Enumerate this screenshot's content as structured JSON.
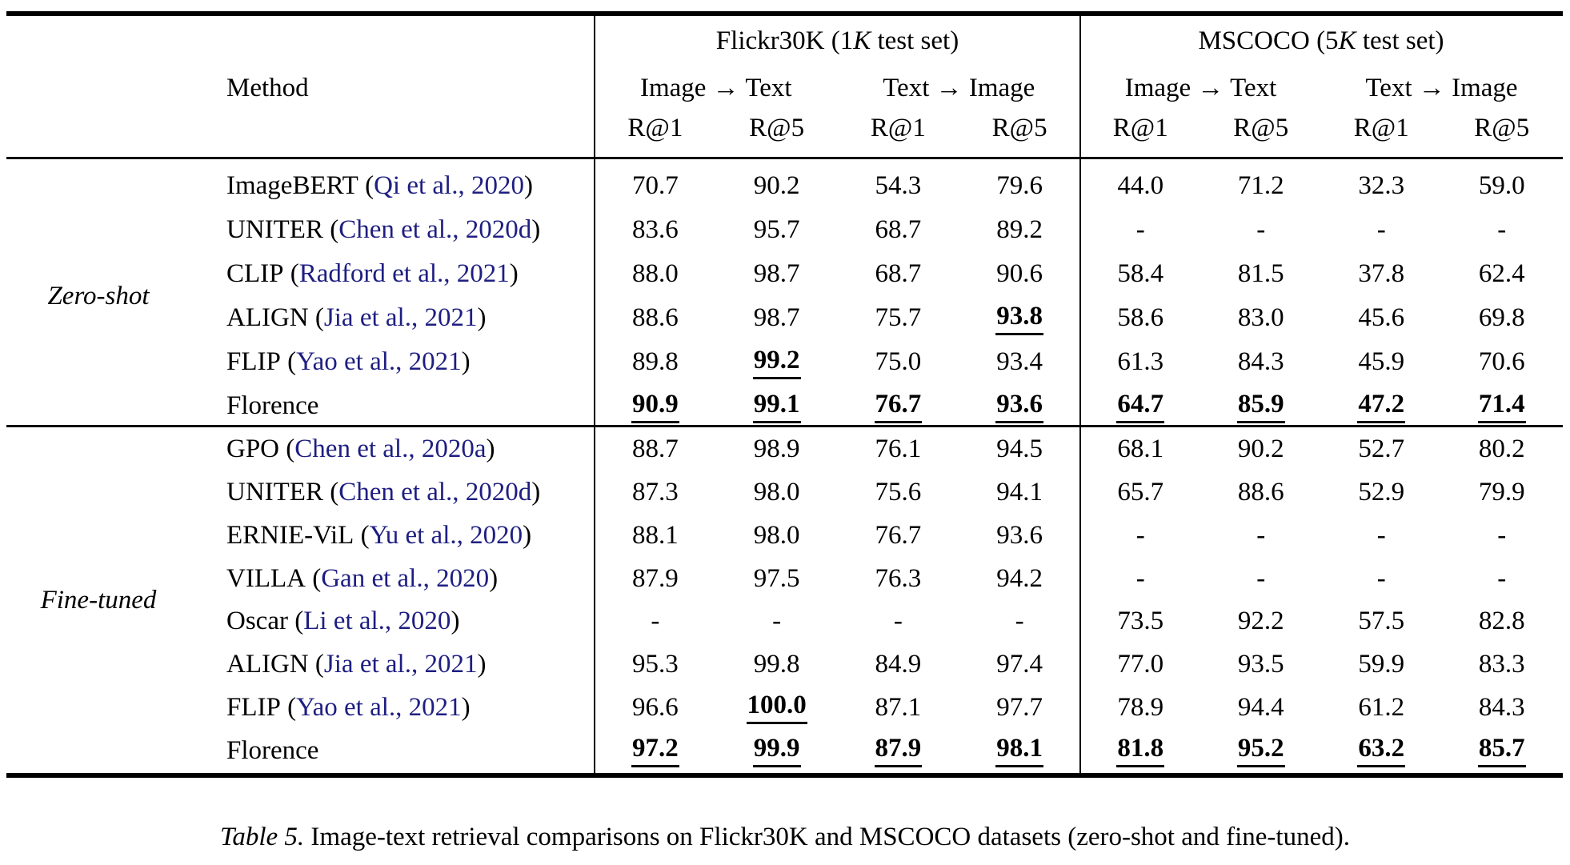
{
  "colors": {
    "citation_blue": "#1e1e82",
    "text": "#000000",
    "background": "#ffffff"
  },
  "header": {
    "method": "Method",
    "datasets": [
      {
        "pre": "Flickr30K (1",
        "k": "K",
        "post": " test set)",
        "directions": [
          "Image → Text",
          "Text → Image"
        ],
        "metrics": [
          "R@1",
          "R@5"
        ]
      },
      {
        "pre": "MSCOCO (5",
        "k": "K",
        "post": " test set)",
        "directions": [
          "Image → Text",
          "Text → Image"
        ],
        "metrics": [
          "R@1",
          "R@5"
        ]
      }
    ]
  },
  "sections": [
    {
      "label": "Zero-shot",
      "rows": [
        {
          "method": "ImageBERT",
          "cite": "Qi et al., 2020",
          "values": [
            "70.7",
            "90.2",
            "54.3",
            "79.6",
            "44.0",
            "71.2",
            "32.3",
            "59.0"
          ],
          "hl": []
        },
        {
          "method": "UNITER",
          "cite": "Chen et al., 2020d",
          "values": [
            "83.6",
            "95.7",
            "68.7",
            "89.2",
            "-",
            "-",
            "-",
            "-"
          ],
          "hl": []
        },
        {
          "method": "CLIP",
          "cite": "Radford et al., 2021",
          "values": [
            "88.0",
            "98.7",
            "68.7",
            "90.6",
            "58.4",
            "81.5",
            "37.8",
            "62.4"
          ],
          "hl": []
        },
        {
          "method": "ALIGN",
          "cite": "Jia et al., 2021",
          "values": [
            "88.6",
            "98.7",
            "75.7",
            "93.8",
            "58.6",
            "83.0",
            "45.6",
            "69.8"
          ],
          "hl": [
            3
          ]
        },
        {
          "method": "FLIP",
          "cite": "Yao et al., 2021",
          "values": [
            "89.8",
            "99.2",
            "75.0",
            "93.4",
            "61.3",
            "84.3",
            "45.9",
            "70.6"
          ],
          "hl": [
            1
          ]
        },
        {
          "method": "Florence",
          "cite": null,
          "values": [
            "90.9",
            "99.1",
            "76.7",
            "93.6",
            "64.7",
            "85.9",
            "47.2",
            "71.4"
          ],
          "hl": [
            0,
            1,
            2,
            3,
            4,
            5,
            6,
            7
          ]
        }
      ]
    },
    {
      "label": "Fine-tuned",
      "rows": [
        {
          "method": "GPO",
          "cite": "Chen et al., 2020a",
          "values": [
            "88.7",
            "98.9",
            "76.1",
            "94.5",
            "68.1",
            "90.2",
            "52.7",
            "80.2"
          ],
          "hl": []
        },
        {
          "method": "UNITER",
          "cite": "Chen et al., 2020d",
          "values": [
            "87.3",
            "98.0",
            "75.6",
            "94.1",
            "65.7",
            "88.6",
            "52.9",
            "79.9"
          ],
          "hl": []
        },
        {
          "method": "ERNIE-ViL",
          "cite": "Yu et al., 2020",
          "values": [
            "88.1",
            "98.0",
            "76.7",
            "93.6",
            "-",
            "-",
            "-",
            "-"
          ],
          "hl": []
        },
        {
          "method": "VILLA",
          "cite": "Gan et al., 2020",
          "values": [
            "87.9",
            "97.5",
            "76.3",
            "94.2",
            "-",
            "-",
            "-",
            "-"
          ],
          "hl": []
        },
        {
          "method": "Oscar",
          "cite": "Li et al., 2020",
          "values": [
            "-",
            "-",
            "-",
            "-",
            "73.5",
            "92.2",
            "57.5",
            "82.8"
          ],
          "hl": []
        },
        {
          "method": "ALIGN",
          "cite": "Jia et al., 2021",
          "values": [
            "95.3",
            "99.8",
            "84.9",
            "97.4",
            "77.0",
            "93.5",
            "59.9",
            "83.3"
          ],
          "hl": []
        },
        {
          "method": "FLIP",
          "cite": "Yao et al., 2021",
          "values": [
            "96.6",
            "100.0",
            "87.1",
            "97.7",
            "78.9",
            "94.4",
            "61.2",
            "84.3"
          ],
          "hl": [
            1
          ]
        },
        {
          "method": "Florence",
          "cite": null,
          "values": [
            "97.2",
            "99.9",
            "87.9",
            "98.1",
            "81.8",
            "95.2",
            "63.2",
            "85.7"
          ],
          "hl": [
            0,
            1,
            2,
            3,
            4,
            5,
            6,
            7
          ]
        }
      ]
    }
  ],
  "caption": {
    "label": "Table 5.",
    "text": " Image-text retrieval comparisons on Flickr30K and MSCOCO datasets (zero-shot and fine-tuned)."
  }
}
